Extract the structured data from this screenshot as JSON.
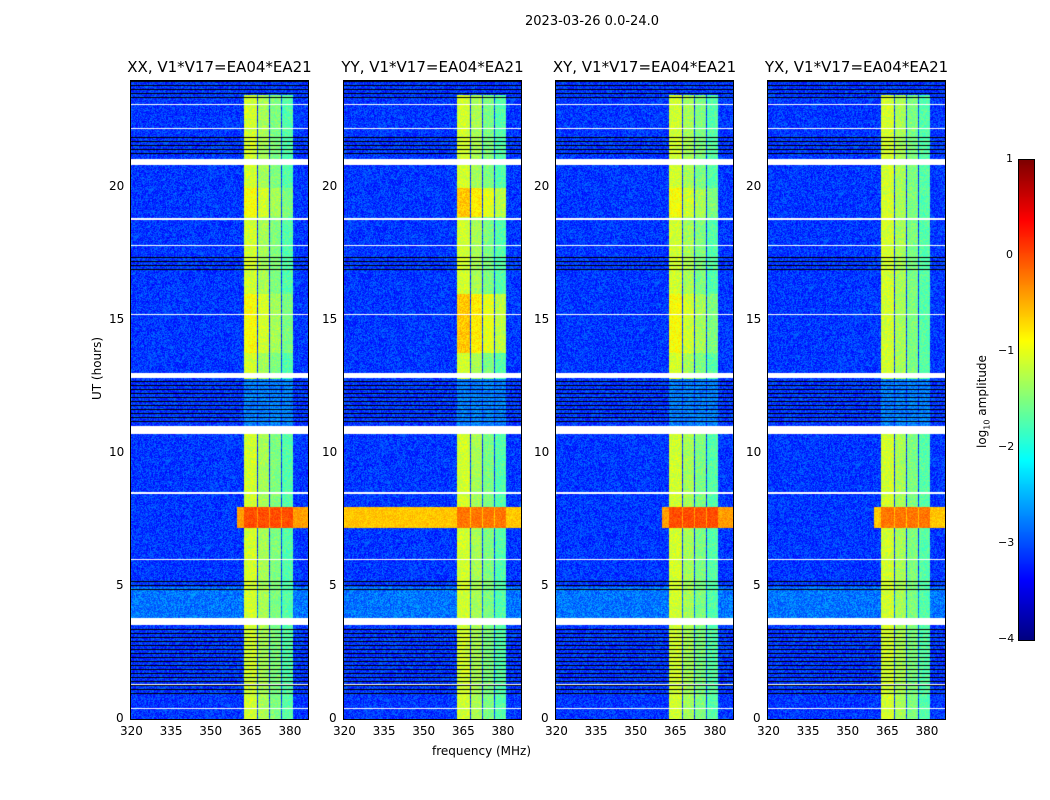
{
  "suptitle": "2023-03-26 0.0-24.0",
  "chart_data": {
    "type": "heatmap",
    "colormap": "jet",
    "xlabel": "frequency (MHz)",
    "ylabel": "UT (hours)",
    "xlim": [
      320,
      387
    ],
    "ylim": [
      0,
      24
    ],
    "xticks": [
      "320",
      "335",
      "350",
      "365",
      "380"
    ],
    "xtick_values": [
      320,
      335,
      350,
      365,
      380
    ],
    "yticks": [
      "0",
      "5",
      "10",
      "15",
      "20"
    ],
    "ytick_values": [
      0,
      5,
      10,
      15,
      20
    ],
    "colorbar": {
      "label": "log10 amplitude",
      "label_main": "log",
      "label_sub": "10",
      "label_rest": " amplitude",
      "clim": [
        -4,
        1
      ],
      "ticks": [
        "1",
        "0",
        "−1",
        "−2",
        "−3",
        "−4"
      ],
      "tick_values": [
        1,
        0,
        -1,
        -2,
        -3,
        -4
      ]
    },
    "background_level": -3.1,
    "rfi_bands": [
      {
        "f": [
          362.5,
          367.5
        ],
        "level": -1.1
      },
      {
        "f": [
          368,
          372
        ],
        "level": -1.3
      },
      {
        "f": [
          372.5,
          376.5
        ],
        "level": -1.5
      },
      {
        "f": [
          377,
          381
        ],
        "level": -1.7
      }
    ],
    "flagged_white_hours": [
      [
        20.85,
        21.1
      ],
      [
        12.85,
        13.05
      ],
      [
        10.75,
        11.05
      ],
      [
        3.55,
        3.8
      ],
      [
        23.1,
        23.15
      ],
      [
        22.2,
        22.25
      ],
      [
        18.8,
        18.85
      ],
      [
        17.8,
        17.85
      ],
      [
        15.2,
        15.25
      ],
      [
        8.5,
        8.55
      ],
      [
        6.0,
        6.05
      ],
      [
        1.3,
        1.35
      ],
      [
        0.4,
        0.45
      ]
    ],
    "flagged_black_hours": [
      [
        23.3,
        24
      ],
      [
        21.2,
        22
      ],
      [
        16.9,
        17.4
      ],
      [
        11.1,
        12.8
      ],
      [
        4.8,
        5.2
      ],
      [
        0.9,
        3.5
      ]
    ],
    "panels": [
      {
        "title": "XX, V1*V17=EA04*EA21",
        "event_level": -0.4,
        "event_broadband": false,
        "band_boost": 0.2
      },
      {
        "title": "YY, V1*V17=EA04*EA21",
        "event_level": -0.6,
        "event_broadband": true,
        "band_boost": 0.5
      },
      {
        "title": "XY, V1*V17=EA04*EA21",
        "event_level": -0.4,
        "event_broadband": false,
        "band_boost": 0.2
      },
      {
        "title": "YX, V1*V17=EA04*EA21",
        "event_level": -0.6,
        "event_broadband": false,
        "band_boost": 0.0
      }
    ],
    "event_hours": [
      7.2,
      8.0
    ],
    "bright_hours": [
      [
        13.8,
        16.0
      ],
      [
        18.9,
        20.0
      ]
    ]
  }
}
